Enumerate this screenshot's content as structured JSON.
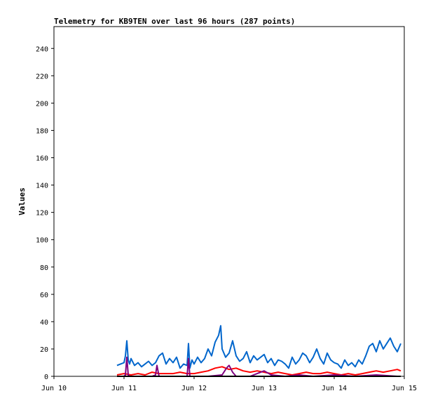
{
  "chart_data": {
    "type": "line",
    "title": "Telemetry for KB9TEN over last 96 hours (287 points)",
    "ylabel": "Values",
    "xlabel": "",
    "ylim": [
      0,
      256
    ],
    "y_ticks": [
      0,
      20,
      40,
      60,
      80,
      100,
      120,
      140,
      160,
      180,
      200,
      220,
      240
    ],
    "x_ticks": [
      "Jun 10",
      "Jun 11",
      "Jun 12",
      "Jun 13",
      "Jun 14",
      "Jun 15"
    ],
    "xlim_days": [
      10,
      15
    ],
    "grid": false,
    "colors": [
      "#0066cc",
      "#ff0000",
      "#800080",
      "#000000"
    ],
    "series": [
      {
        "color": "#0066cc",
        "x": [
          10.9,
          10.95,
          11.0,
          11.02,
          11.04,
          11.06,
          11.08,
          11.1,
          11.15,
          11.2,
          11.25,
          11.3,
          11.35,
          11.4,
          11.45,
          11.5,
          11.55,
          11.6,
          11.65,
          11.7,
          11.75,
          11.8,
          11.85,
          11.9,
          11.92,
          11.94,
          11.97,
          12.0,
          12.05,
          12.1,
          12.15,
          12.2,
          12.25,
          12.3,
          12.35,
          12.38,
          12.4,
          12.45,
          12.5,
          12.55,
          12.6,
          12.65,
          12.7,
          12.75,
          12.8,
          12.85,
          12.9,
          12.95,
          13.0,
          13.05,
          13.1,
          13.15,
          13.2,
          13.25,
          13.3,
          13.35,
          13.4,
          13.45,
          13.5,
          13.55,
          13.6,
          13.65,
          13.7,
          13.75,
          13.8,
          13.85,
          13.9,
          13.95,
          14.0,
          14.05,
          14.1,
          14.15,
          14.2,
          14.25,
          14.3,
          14.35,
          14.4,
          14.45,
          14.5,
          14.55,
          14.6,
          14.65,
          14.7,
          14.75,
          14.8,
          14.85,
          14.9,
          14.95
        ],
        "y": [
          8,
          9,
          10,
          15,
          26,
          12,
          9,
          13,
          8,
          10,
          7,
          9,
          11,
          8,
          10,
          15,
          17,
          9,
          13,
          10,
          14,
          6,
          9,
          8,
          24,
          6,
          12,
          9,
          14,
          10,
          13,
          20,
          15,
          25,
          30,
          37,
          20,
          14,
          17,
          26,
          15,
          11,
          13,
          18,
          10,
          15,
          12,
          14,
          16,
          10,
          13,
          8,
          12,
          11,
          9,
          6,
          14,
          9,
          12,
          17,
          15,
          10,
          14,
          20,
          13,
          9,
          17,
          12,
          10,
          9,
          6,
          12,
          8,
          10,
          7,
          12,
          9,
          15,
          22,
          24,
          18,
          26,
          20,
          24,
          28,
          22,
          18,
          24
        ]
      },
      {
        "color": "#ff0000",
        "x": [
          10.9,
          11.0,
          11.1,
          11.2,
          11.3,
          11.4,
          11.5,
          11.6,
          11.7,
          11.8,
          11.9,
          12.0,
          12.1,
          12.2,
          12.3,
          12.4,
          12.5,
          12.6,
          12.7,
          12.8,
          12.9,
          13.0,
          13.1,
          13.2,
          13.3,
          13.4,
          13.5,
          13.6,
          13.7,
          13.8,
          13.9,
          14.0,
          14.1,
          14.2,
          14.3,
          14.4,
          14.5,
          14.6,
          14.7,
          14.8,
          14.9,
          14.95
        ],
        "y": [
          1,
          2,
          1,
          2,
          1,
          3,
          2,
          2,
          2,
          3,
          2,
          2,
          3,
          4,
          6,
          7,
          5,
          6,
          4,
          3,
          4,
          3,
          2,
          3,
          2,
          1,
          2,
          3,
          2,
          2,
          3,
          2,
          1,
          2,
          1,
          2,
          3,
          4,
          3,
          4,
          5,
          4
        ]
      },
      {
        "color": "#800080",
        "x": [
          10.9,
          11.0,
          11.02,
          11.04,
          11.06,
          11.08,
          11.2,
          11.4,
          11.45,
          11.47,
          11.5,
          11.6,
          11.8,
          11.9,
          11.92,
          11.94,
          12.0,
          12.2,
          12.4,
          12.45,
          12.48,
          12.5,
          12.55,
          12.6,
          12.8,
          12.9,
          13.0,
          13.1,
          13.3,
          13.5,
          13.7,
          14.0,
          14.3,
          14.6,
          14.9,
          14.95
        ],
        "y": [
          0,
          0,
          1,
          14,
          1,
          0,
          0,
          0,
          1,
          8,
          0,
          0,
          0,
          0,
          13,
          0,
          0,
          0,
          1,
          5,
          7,
          8,
          3,
          0,
          0,
          2,
          4,
          1,
          0,
          1,
          0,
          1,
          0,
          1,
          0,
          0
        ]
      },
      {
        "color": "#000000",
        "x": [
          10.9,
          14.95
        ],
        "y": [
          0,
          0
        ]
      }
    ]
  }
}
